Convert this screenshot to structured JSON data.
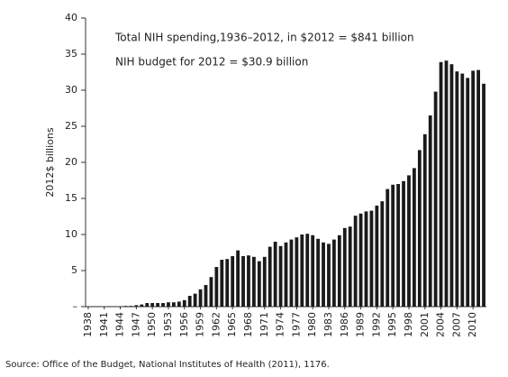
{
  "chart_data": {
    "type": "bar",
    "annotations": [
      "Total NIH spending,1936–2012, in $2012 = $841 billion",
      "NIH budget for 2012 = $30.9 billion"
    ],
    "ylabel": "2012$ billions",
    "source": "Source: Office of the Budget, National Institutes of Health (2011), 1176.",
    "categories": [
      "1938",
      null,
      null,
      "1941",
      null,
      null,
      "1944",
      null,
      null,
      "1947",
      null,
      null,
      "1950",
      null,
      null,
      "1953",
      null,
      null,
      "1956",
      null,
      null,
      "1959",
      null,
      null,
      "1962",
      null,
      null,
      "1965",
      null,
      null,
      "1968",
      null,
      null,
      "1971",
      null,
      null,
      "1974",
      null,
      null,
      "1977",
      null,
      null,
      "1980",
      null,
      null,
      "1983",
      null,
      null,
      "1986",
      null,
      null,
      "1989",
      null,
      null,
      "1992",
      null,
      null,
      "1995",
      null,
      null,
      "1998",
      null,
      null,
      "2001",
      null,
      null,
      "2004",
      null,
      null,
      "2007",
      null,
      null,
      "2010",
      null,
      null
    ],
    "values": [
      0.05,
      0.05,
      0.05,
      0.05,
      0.05,
      0.05,
      0.05,
      0.1,
      0.1,
      0.2,
      0.3,
      0.5,
      0.5,
      0.5,
      0.5,
      0.6,
      0.6,
      0.7,
      0.9,
      1.5,
      1.8,
      2.4,
      3.0,
      4.1,
      5.5,
      6.5,
      6.6,
      7.0,
      7.8,
      7.0,
      7.1,
      6.9,
      6.3,
      6.9,
      8.3,
      9.0,
      8.4,
      8.9,
      9.3,
      9.6,
      10.0,
      10.1,
      9.9,
      9.4,
      8.9,
      8.7,
      9.3,
      9.9,
      10.9,
      11.1,
      12.6,
      12.9,
      13.2,
      13.3,
      14.0,
      14.6,
      16.3,
      16.9,
      17.0,
      17.4,
      18.2,
      19.2,
      21.7,
      23.9,
      26.5,
      29.8,
      33.9,
      34.1,
      33.6,
      32.6,
      32.3,
      31.7,
      32.7,
      32.8,
      30.9
    ],
    "color": "#1a1a1a",
    "ylim": [
      0,
      40
    ],
    "yticks": [
      {
        "value": 0,
        "label": "–"
      },
      5,
      10,
      15,
      20,
      25,
      30,
      35,
      40
    ],
    "grid": false
  }
}
